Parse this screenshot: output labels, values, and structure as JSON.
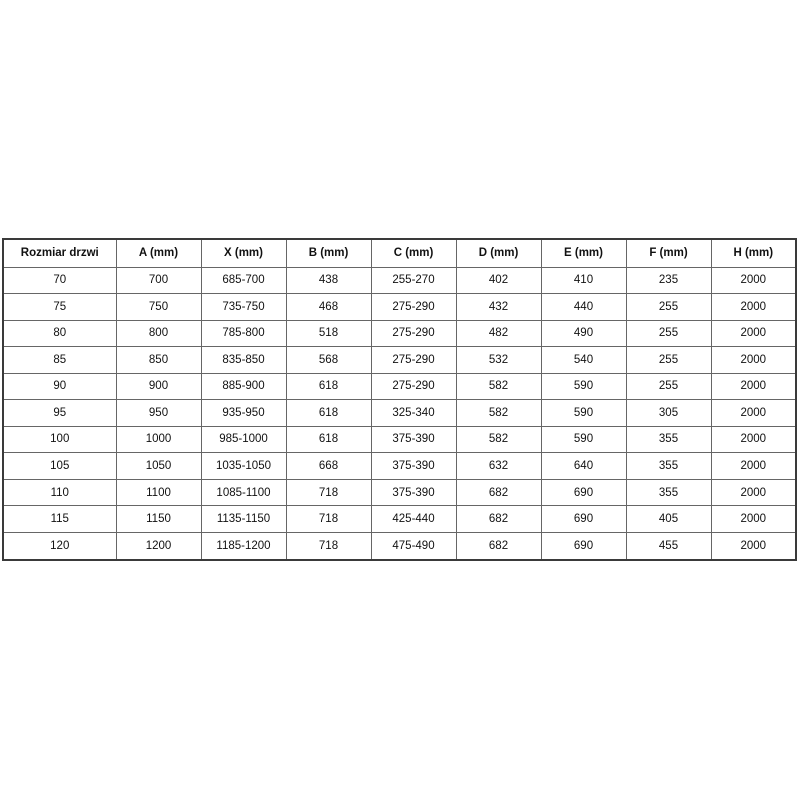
{
  "page": {
    "background_color": "#ffffff"
  },
  "colors": {
    "outer_border": "#3a3a3a",
    "inner_border": "#666666",
    "text": "#111111",
    "cell_background": "#ffffff"
  },
  "table": {
    "headers": [
      "Rozmiar drzwi",
      "A (mm)",
      "X (mm)",
      "B (mm)",
      "C (mm)",
      "D (mm)",
      "E (mm)",
      "F (mm)",
      "H (mm)"
    ],
    "rows": [
      [
        "70",
        "700",
        "685-700",
        "438",
        "255-270",
        "402",
        "410",
        "235",
        "2000"
      ],
      [
        "75",
        "750",
        "735-750",
        "468",
        "275-290",
        "432",
        "440",
        "255",
        "2000"
      ],
      [
        "80",
        "800",
        "785-800",
        "518",
        "275-290",
        "482",
        "490",
        "255",
        "2000"
      ],
      [
        "85",
        "850",
        "835-850",
        "568",
        "275-290",
        "532",
        "540",
        "255",
        "2000"
      ],
      [
        "90",
        "900",
        "885-900",
        "618",
        "275-290",
        "582",
        "590",
        "255",
        "2000"
      ],
      [
        "95",
        "950",
        "935-950",
        "618",
        "325-340",
        "582",
        "590",
        "305",
        "2000"
      ],
      [
        "100",
        "1000",
        "985-1000",
        "618",
        "375-390",
        "582",
        "590",
        "355",
        "2000"
      ],
      [
        "105",
        "1050",
        "1035-1050",
        "668",
        "375-390",
        "632",
        "640",
        "355",
        "2000"
      ],
      [
        "110",
        "1100",
        "1085-1100",
        "718",
        "375-390",
        "682",
        "690",
        "355",
        "2000"
      ],
      [
        "115",
        "1150",
        "1135-1150",
        "718",
        "425-440",
        "682",
        "690",
        "405",
        "2000"
      ],
      [
        "120",
        "1200",
        "1185-1200",
        "718",
        "475-490",
        "682",
        "690",
        "455",
        "2000"
      ]
    ]
  }
}
